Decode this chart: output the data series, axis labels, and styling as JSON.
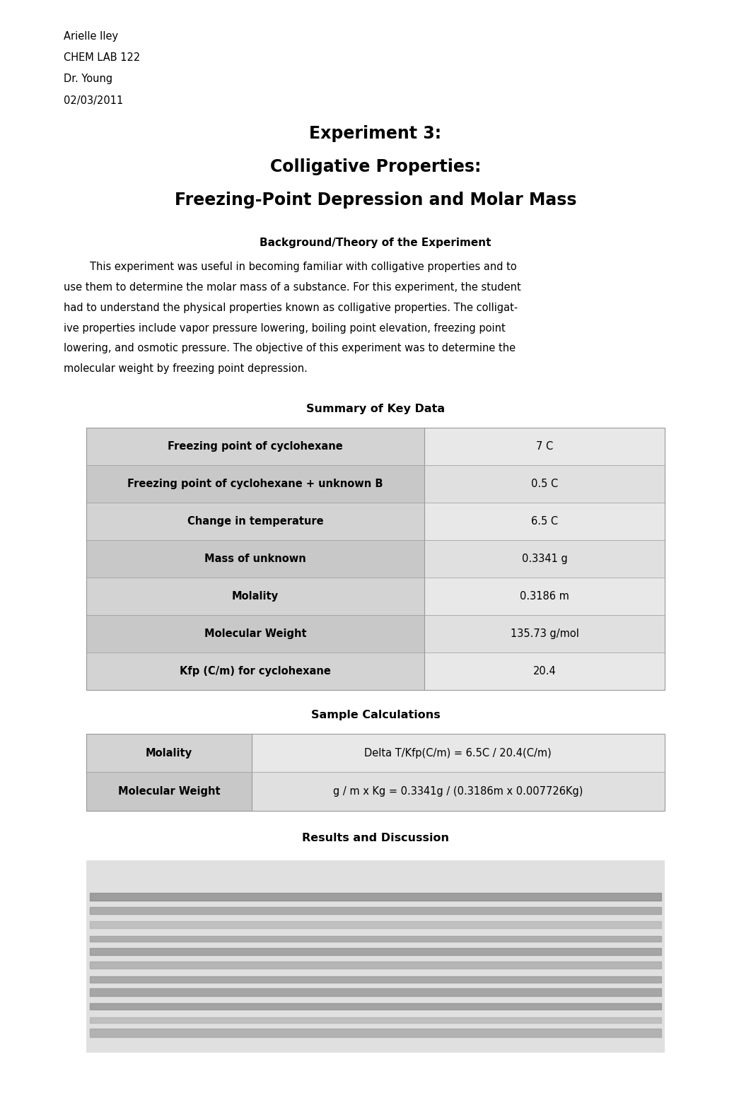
{
  "page_width": 10.62,
  "page_height": 15.56,
  "background_color": "#ffffff",
  "header_lines": [
    "Arielle Iley",
    "CHEM LAB 122",
    "Dr. Young",
    "02/03/2011"
  ],
  "title_lines": [
    "Experiment 3:",
    "Colligative Properties:",
    "Freezing-Point Depression and Molar Mass"
  ],
  "section1_heading": "Background/Theory of the Experiment",
  "body_lines": [
    "        This experiment was useful in becoming familiar with colligative properties and to",
    "use them to determine the molar mass of a substance. For this experiment, the student",
    "had to understand the physical properties known as colligative properties. The colligat-",
    "ive properties include vapor pressure lowering, boiling point elevation, freezing point",
    "lowering, and osmotic pressure. The objective of this experiment was to determine the",
    "molecular weight by freezing point depression."
  ],
  "table1_title": "Summary of Key Data",
  "table1_rows": [
    [
      "Freezing point of cyclohexane",
      "7 C"
    ],
    [
      "Freezing point of cyclohexane + unknown B",
      "0.5 C"
    ],
    [
      "Change in temperature",
      "6.5 C"
    ],
    [
      "Mass of unknown",
      "0.3341 g"
    ],
    [
      "Molality",
      "0.3186 m"
    ],
    [
      "Molecular Weight",
      "135.73 g/mol"
    ],
    [
      "Kfp (C/m) for cyclohexane",
      "20.4"
    ]
  ],
  "table2_title": "Sample Calculations",
  "table2_rows": [
    [
      "Molality",
      "Delta T/Kfp(C/m) = 6.5C / 20.4(C/m)"
    ],
    [
      "Molecular Weight",
      "g / m x Kg = 0.3341g / (0.3186m x 0.007726Kg)"
    ]
  ],
  "section3_heading": "Results and Discussion",
  "table1_col1_bg_colors": [
    "#d3d3d3",
    "#c8c8c8",
    "#d3d3d3",
    "#c8c8c8",
    "#d3d3d3",
    "#c8c8c8",
    "#d3d3d3"
  ],
  "table1_col2_bg_colors": [
    "#e8e8e8",
    "#e0e0e0",
    "#e8e8e8",
    "#e0e0e0",
    "#e8e8e8",
    "#e0e0e0",
    "#e8e8e8"
  ],
  "table2_col1_bg_colors": [
    "#d3d3d3",
    "#c8c8c8"
  ],
  "table2_col2_bg_colors": [
    "#e8e8e8",
    "#e0e0e0"
  ],
  "table_border": "#999999"
}
